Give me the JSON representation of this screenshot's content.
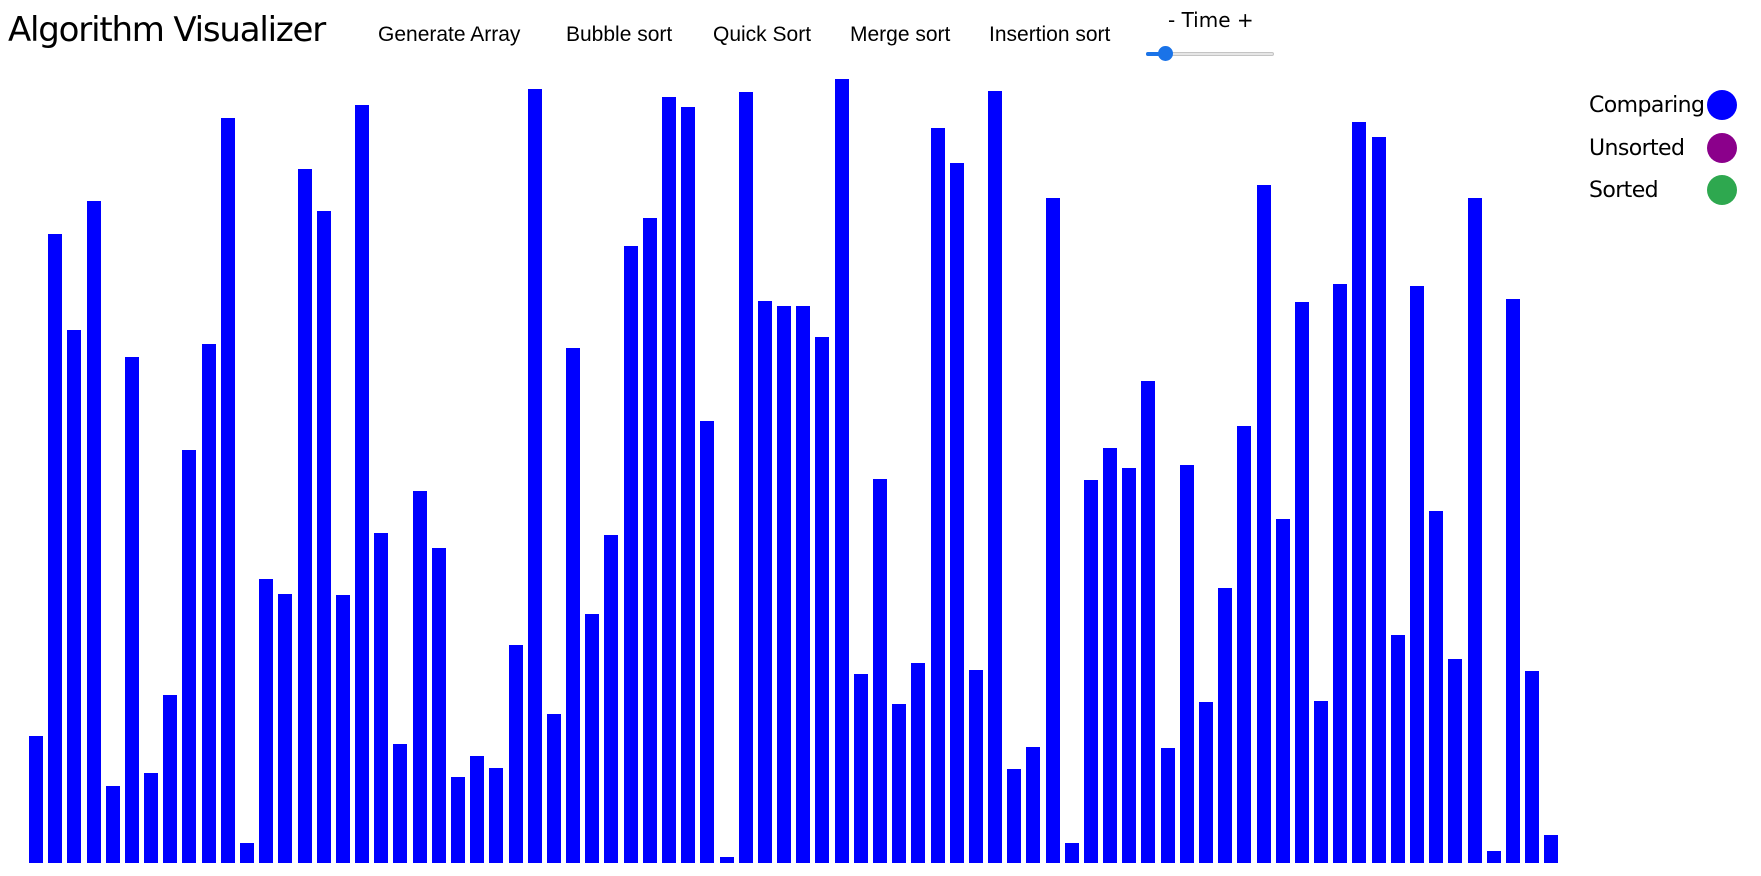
{
  "header": {
    "title": "Algorithm Visualizer",
    "nav": [
      {
        "name": "generate-array-button",
        "label": "Generate Array"
      },
      {
        "name": "bubble-sort-button",
        "label": "Bubble sort"
      },
      {
        "name": "quick-sort-button",
        "label": "Quick Sort"
      },
      {
        "name": "merge-sort-button",
        "label": "Merge sort"
      },
      {
        "name": "insertion-sort-button",
        "label": "Insertion sort"
      }
    ],
    "time_label": "- Time +",
    "time_slider_value": 0.15
  },
  "legend": [
    {
      "label": "Comparing",
      "color": "#0000ff"
    },
    {
      "label": "Unsorted",
      "color": "#8b008b"
    },
    {
      "label": "Sorted",
      "color": "#2ea84f"
    }
  ],
  "colors": {
    "bar": "#0000ff",
    "slider_accent": "#1a73e8"
  },
  "array_values": [
    115,
    617,
    521,
    650,
    65,
    494,
    78,
    156,
    401,
    507,
    733,
    8,
    272,
    257,
    682,
    640,
    256,
    746,
    318,
    107,
    360,
    303,
    74,
    95,
    83,
    206,
    762,
    137,
    503,
    237,
    316,
    605,
    633,
    754,
    744,
    430,
    -6,
    759,
    550,
    545,
    545,
    514,
    772,
    177,
    372,
    147,
    188,
    723,
    688,
    181,
    760,
    82,
    104,
    653,
    8,
    371,
    403,
    383,
    470,
    103,
    386,
    149,
    263,
    425,
    666,
    332,
    549,
    150,
    567,
    729,
    714,
    216,
    565,
    340,
    192,
    653,
    0,
    552,
    180,
    16
  ]
}
